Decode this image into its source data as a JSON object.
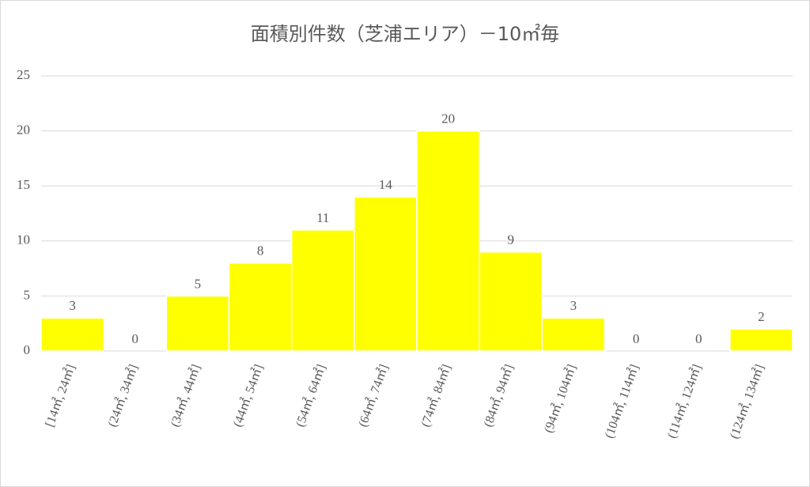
{
  "chart_data": {
    "type": "bar",
    "title": "面積別件数（芝浦エリア）－10㎡毎",
    "categories": [
      "[14㎡, 24㎡]",
      "(24㎡, 34㎡]",
      "(34㎡, 44㎡]",
      "(44㎡, 54㎡]",
      "(54㎡, 64㎡]",
      "(64㎡, 74㎡]",
      "(74㎡, 84㎡]",
      "(84㎡, 94㎡]",
      "(94㎡, 104㎡]",
      "(104㎡, 114㎡]",
      "(114㎡, 124㎡]",
      "(124㎡, 134㎡]"
    ],
    "values": [
      3,
      0,
      5,
      8,
      11,
      14,
      20,
      9,
      3,
      0,
      0,
      2
    ],
    "color": "#ffff00",
    "ylim": [
      0,
      25
    ],
    "yticks": [
      0,
      5,
      10,
      15,
      20,
      25
    ],
    "grid": true
  }
}
